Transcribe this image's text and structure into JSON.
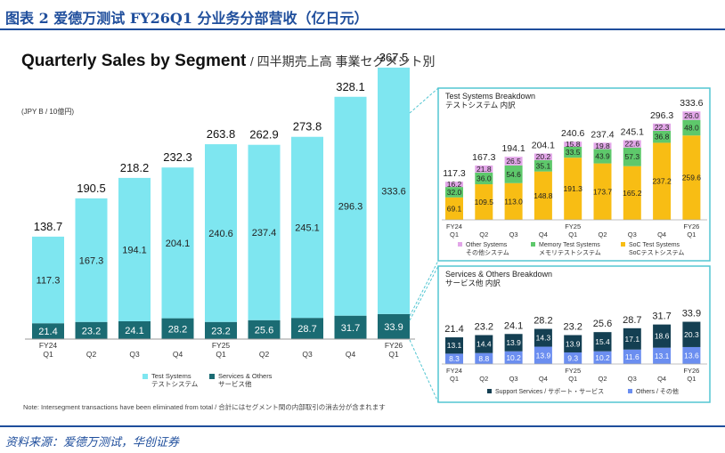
{
  "header": {
    "title": "图表 2  爱德万测试 FY26Q1 分业务分部营收（亿日元）"
  },
  "chart_title": {
    "en": "Quarterly Sales by Segment",
    "jp": "/ 四半期売上高 事業セグメント別"
  },
  "unit_label": "(JPY B / 10億円)",
  "note": "Note: Intersegment transactions have been eliminated from total / 合計にはセグメント間の内部取引の消去分が含まれます",
  "source": "资料来源：爱德万测试，华创证券",
  "colors": {
    "test_systems": "#7ee6f0",
    "services": "#1b6b73",
    "other_systems": "#e2a6e8",
    "memory": "#5ec86b",
    "soc": "#f8bd14",
    "support": "#143f52",
    "others": "#6b8ef0",
    "teal_border": "#52c6d2"
  },
  "chart_data": [
    {
      "type": "bar",
      "stacked": true,
      "title": "Quarterly Sales by Segment",
      "categories": [
        "FY24 Q1",
        "Q2",
        "Q3",
        "Q4",
        "FY25 Q1",
        "Q2",
        "Q3",
        "Q4",
        "FY26 Q1"
      ],
      "category_lines": [
        [
          "FY24",
          "Q1"
        ],
        [
          "",
          "Q2"
        ],
        [
          "",
          "Q3"
        ],
        [
          "",
          "Q4"
        ],
        [
          "FY25",
          "Q1"
        ],
        [
          "",
          "Q2"
        ],
        [
          "",
          "Q3"
        ],
        [
          "",
          "Q4"
        ],
        [
          "FY26",
          "Q1"
        ]
      ],
      "series": [
        {
          "name": "Services & Others / サービス他",
          "legend_en": "Services & Others",
          "legend_jp": "サービス他",
          "values": [
            21.4,
            23.2,
            24.1,
            28.2,
            23.2,
            25.6,
            28.7,
            31.7,
            33.9
          ]
        },
        {
          "name": "Test Systems / テストシステム",
          "legend_en": "Test Systems",
          "legend_jp": "テストシステム",
          "values": [
            117.3,
            167.3,
            194.1,
            204.1,
            240.6,
            237.4,
            245.1,
            296.3,
            333.6
          ]
        }
      ],
      "totals": [
        138.7,
        190.5,
        218.2,
        232.3,
        263.8,
        262.9,
        273.8,
        328.1,
        367.5
      ],
      "ylim": [
        0,
        400
      ]
    },
    {
      "type": "bar",
      "stacked": true,
      "title": "Test Systems Breakdown",
      "subtitle": "テストシステム 内訳",
      "categories": [
        "FY24 Q1",
        "Q2",
        "Q3",
        "Q4",
        "FY25 Q1",
        "Q2",
        "Q3",
        "Q4",
        "FY26 Q1"
      ],
      "category_lines": [
        [
          "FY24",
          "Q1"
        ],
        [
          "",
          "Q2"
        ],
        [
          "",
          "Q3"
        ],
        [
          "",
          "Q4"
        ],
        [
          "FY25",
          "Q1"
        ],
        [
          "",
          "Q2"
        ],
        [
          "",
          "Q3"
        ],
        [
          "",
          "Q4"
        ],
        [
          "FY26",
          "Q1"
        ]
      ],
      "series": [
        {
          "name": "SoC Test Systems / SoCテストシステム",
          "legend_en": "SoC Test Systems",
          "legend_jp": "SoCテストシステム",
          "values": [
            69.1,
            109.5,
            113.0,
            148.8,
            191.3,
            173.7,
            165.2,
            237.2,
            259.6
          ]
        },
        {
          "name": "Memory Test Systems / メモリテストシステム",
          "legend_en": "Memory Test Systems",
          "legend_jp": "メモリテストシステム",
          "values": [
            32.0,
            36.0,
            54.6,
            35.1,
            33.5,
            43.9,
            57.3,
            36.8,
            48.0
          ]
        },
        {
          "name": "Other Systems / その他システム",
          "legend_en": "Other Systems",
          "legend_jp": "その他システム",
          "values": [
            16.2,
            21.8,
            26.5,
            20.2,
            15.8,
            19.8,
            22.6,
            22.3,
            26.0
          ]
        }
      ],
      "totals": [
        117.3,
        167.3,
        194.1,
        204.1,
        240.6,
        237.4,
        245.1,
        296.3,
        333.6
      ],
      "ylim": [
        0,
        350
      ]
    },
    {
      "type": "bar",
      "stacked": true,
      "title": "Services & Others Breakdown",
      "subtitle": "サービス他 内訳",
      "categories": [
        "FY24 Q1",
        "Q2",
        "Q3",
        "Q4",
        "FY25 Q1",
        "Q2",
        "Q3",
        "Q4",
        "FY26 Q1"
      ],
      "category_lines": [
        [
          "FY24",
          "Q1"
        ],
        [
          "",
          "Q2"
        ],
        [
          "",
          "Q3"
        ],
        [
          "",
          "Q4"
        ],
        [
          "FY25",
          "Q1"
        ],
        [
          "",
          "Q2"
        ],
        [
          "",
          "Q3"
        ],
        [
          "",
          "Q4"
        ],
        [
          "FY26",
          "Q1"
        ]
      ],
      "series": [
        {
          "name": "Others / その他",
          "legend_label": "Others / その他",
          "values": [
            8.3,
            8.8,
            10.2,
            13.9,
            9.3,
            10.2,
            11.6,
            13.1,
            13.6
          ]
        },
        {
          "name": "Support Services / サポート・サービス",
          "legend_label": "Support Services / サポート・サービス",
          "values": [
            13.1,
            14.4,
            13.9,
            14.3,
            13.9,
            15.4,
            17.1,
            18.6,
            20.3
          ]
        }
      ],
      "totals": [
        21.4,
        23.2,
        24.1,
        28.2,
        23.2,
        25.6,
        28.7,
        31.7,
        33.9
      ],
      "ylim": [
        0,
        35
      ]
    }
  ]
}
